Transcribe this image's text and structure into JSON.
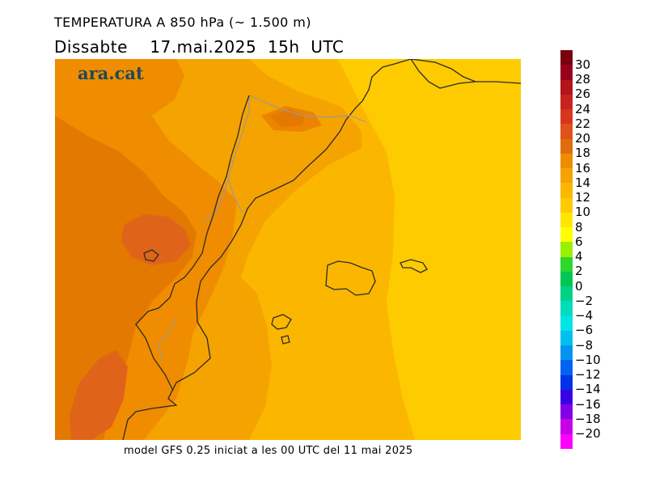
{
  "header": {
    "title": "TEMPERATURA A 850 hPa (~ 1.500 m)",
    "subtitle": "Dissabte    17.mai.2025  15h  UTC"
  },
  "branding": {
    "logo_text": "ara.cat"
  },
  "footer": {
    "model_info": "model GFS 0.25 iniciat a les 00 UTC del 11 mai 2025"
  },
  "legend": {
    "bins": [
      {
        "label": "30",
        "color": "#7a0010"
      },
      {
        "label": "28",
        "color": "#99001c"
      },
      {
        "label": "26",
        "color": "#b3141c"
      },
      {
        "label": "24",
        "color": "#c8221e"
      },
      {
        "label": "22",
        "color": "#d8361c"
      },
      {
        "label": "20",
        "color": "#e0521a"
      },
      {
        "label": "18",
        "color": "#e06d0c"
      },
      {
        "label": "16",
        "color": "#f08c00"
      },
      {
        "label": "14",
        "color": "#f5a300"
      },
      {
        "label": "12",
        "color": "#fbb700"
      },
      {
        "label": "10",
        "color": "#fecb00"
      },
      {
        "label": "8",
        "color": "#ffe600"
      },
      {
        "label": "6",
        "color": "#ffff00"
      },
      {
        "label": "4",
        "color": "#9bef00"
      },
      {
        "label": "2",
        "color": "#2bd82b"
      },
      {
        "label": "0",
        "color": "#00c850"
      },
      {
        "label": "−2",
        "color": "#00d28a"
      },
      {
        "label": "−4",
        "color": "#00dcbc"
      },
      {
        "label": "−6",
        "color": "#00e4e6"
      },
      {
        "label": "−8",
        "color": "#00c0f0"
      },
      {
        "label": "−10",
        "color": "#0096f0"
      },
      {
        "label": "−12",
        "color": "#0064f0"
      },
      {
        "label": "−14",
        "color": "#0032e6"
      },
      {
        "label": "−16",
        "color": "#3c00e6"
      },
      {
        "label": "−18",
        "color": "#8200e6"
      },
      {
        "label": "−20",
        "color": "#c800e6"
      },
      {
        "label": "",
        "color": "#ff00ff"
      }
    ]
  }
}
